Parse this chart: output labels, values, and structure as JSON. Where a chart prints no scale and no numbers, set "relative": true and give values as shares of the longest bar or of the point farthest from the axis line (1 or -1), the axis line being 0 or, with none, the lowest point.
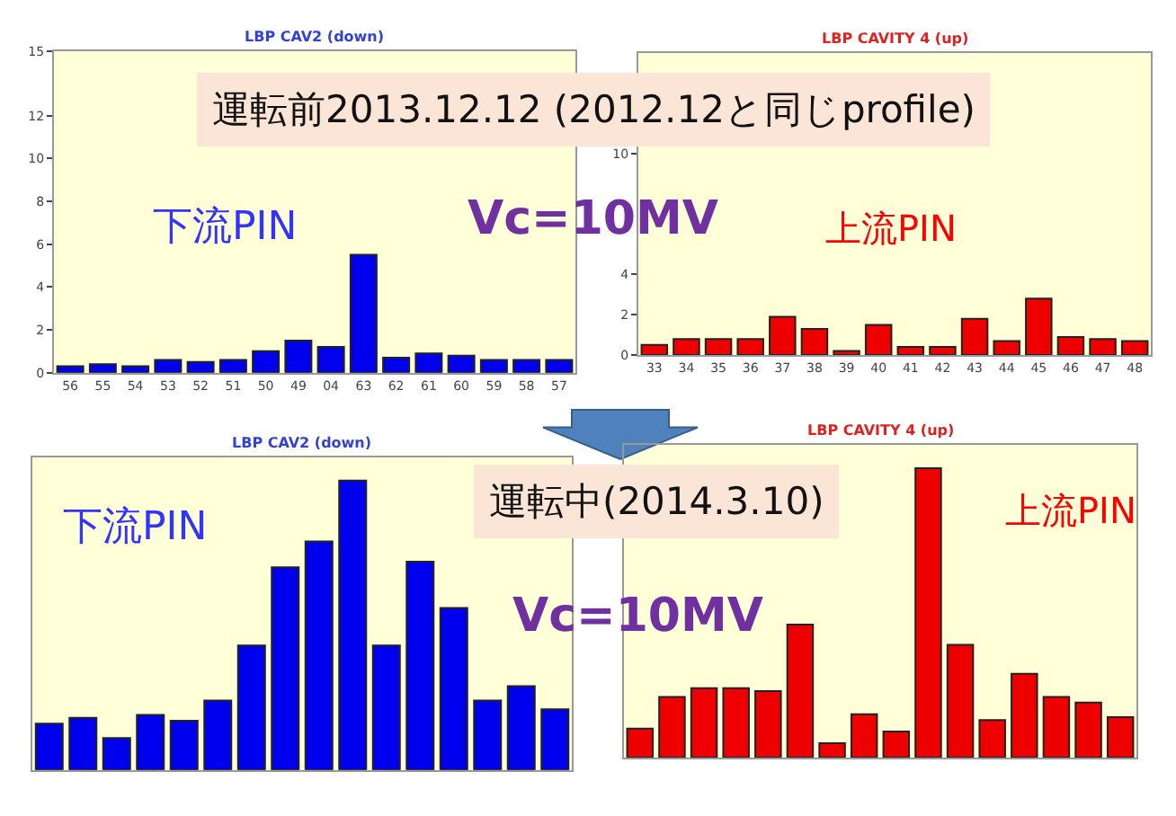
{
  "chart_data": [
    {
      "type": "bar",
      "title": "LBP CAV2 (down)",
      "categories": [
        "56",
        "55",
        "54",
        "53",
        "52",
        "51",
        "50",
        "49",
        "04",
        "63",
        "62",
        "61",
        "60",
        "59",
        "58",
        "57"
      ],
      "series": [
        {
          "color": "#0000ee",
          "values": [
            0.3,
            0.4,
            0.3,
            0.6,
            0.5,
            0.6,
            1.0,
            1.5,
            1.2,
            5.5,
            0.7,
            0.9,
            0.8,
            0.6,
            0.6,
            0.6
          ]
        }
      ],
      "ylim": [
        0,
        15
      ],
      "yticks": [
        0,
        2,
        4,
        6,
        8,
        10,
        12,
        15
      ],
      "grid": false,
      "annotations": [
        "運転前2013.12.12 (2012.12と同じprofile)",
        "下流PIN",
        "Vc=10MV"
      ]
    },
    {
      "type": "bar",
      "title": "LBP CAVITY 4 (up)",
      "categories": [
        "33",
        "34",
        "35",
        "36",
        "37",
        "38",
        "39",
        "40",
        "41",
        "42",
        "43",
        "44",
        "45",
        "46",
        "47",
        "48"
      ],
      "series": [
        {
          "color": "#ee0000",
          "values": [
            0.5,
            0.8,
            0.8,
            0.8,
            1.9,
            1.3,
            0.2,
            1.5,
            0.4,
            0.4,
            1.8,
            0.7,
            2.8,
            0.9,
            0.8,
            0.7
          ]
        }
      ],
      "ylim": [
        0,
        15
      ],
      "yticks": [
        0,
        2,
        4,
        10
      ],
      "grid": false,
      "annotations": [
        "上流PIN"
      ]
    },
    {
      "type": "bar",
      "title": "LBP CAV2 (down)",
      "relative": true,
      "categories": [
        null,
        null,
        null,
        null,
        null,
        null,
        null,
        null,
        null,
        null,
        null,
        null,
        null,
        null,
        null,
        null
      ],
      "series": [
        {
          "color": "#0000ee",
          "values": [
            0.16,
            0.18,
            0.11,
            0.19,
            0.17,
            0.24,
            0.43,
            0.7,
            0.79,
            1.0,
            0.43,
            0.72,
            0.56,
            0.24,
            0.29,
            0.21
          ]
        }
      ],
      "grid": false,
      "annotations": [
        "運転中(2014.3.10)",
        "下流PIN",
        "Vc=10MV"
      ]
    },
    {
      "type": "bar",
      "title": "LBP CAVITY 4 (up)",
      "relative": true,
      "categories": [
        null,
        null,
        null,
        null,
        null,
        null,
        null,
        null,
        null,
        null,
        null,
        null,
        null,
        null,
        null,
        null
      ],
      "series": [
        {
          "color": "#ee0000",
          "values": [
            0.1,
            0.21,
            0.24,
            0.24,
            0.23,
            0.46,
            0.05,
            0.15,
            0.09,
            1.0,
            0.39,
            0.13,
            0.29,
            0.21,
            0.19,
            0.14
          ]
        }
      ],
      "grid": false,
      "annotations": [
        "上流PIN"
      ]
    }
  ]
}
